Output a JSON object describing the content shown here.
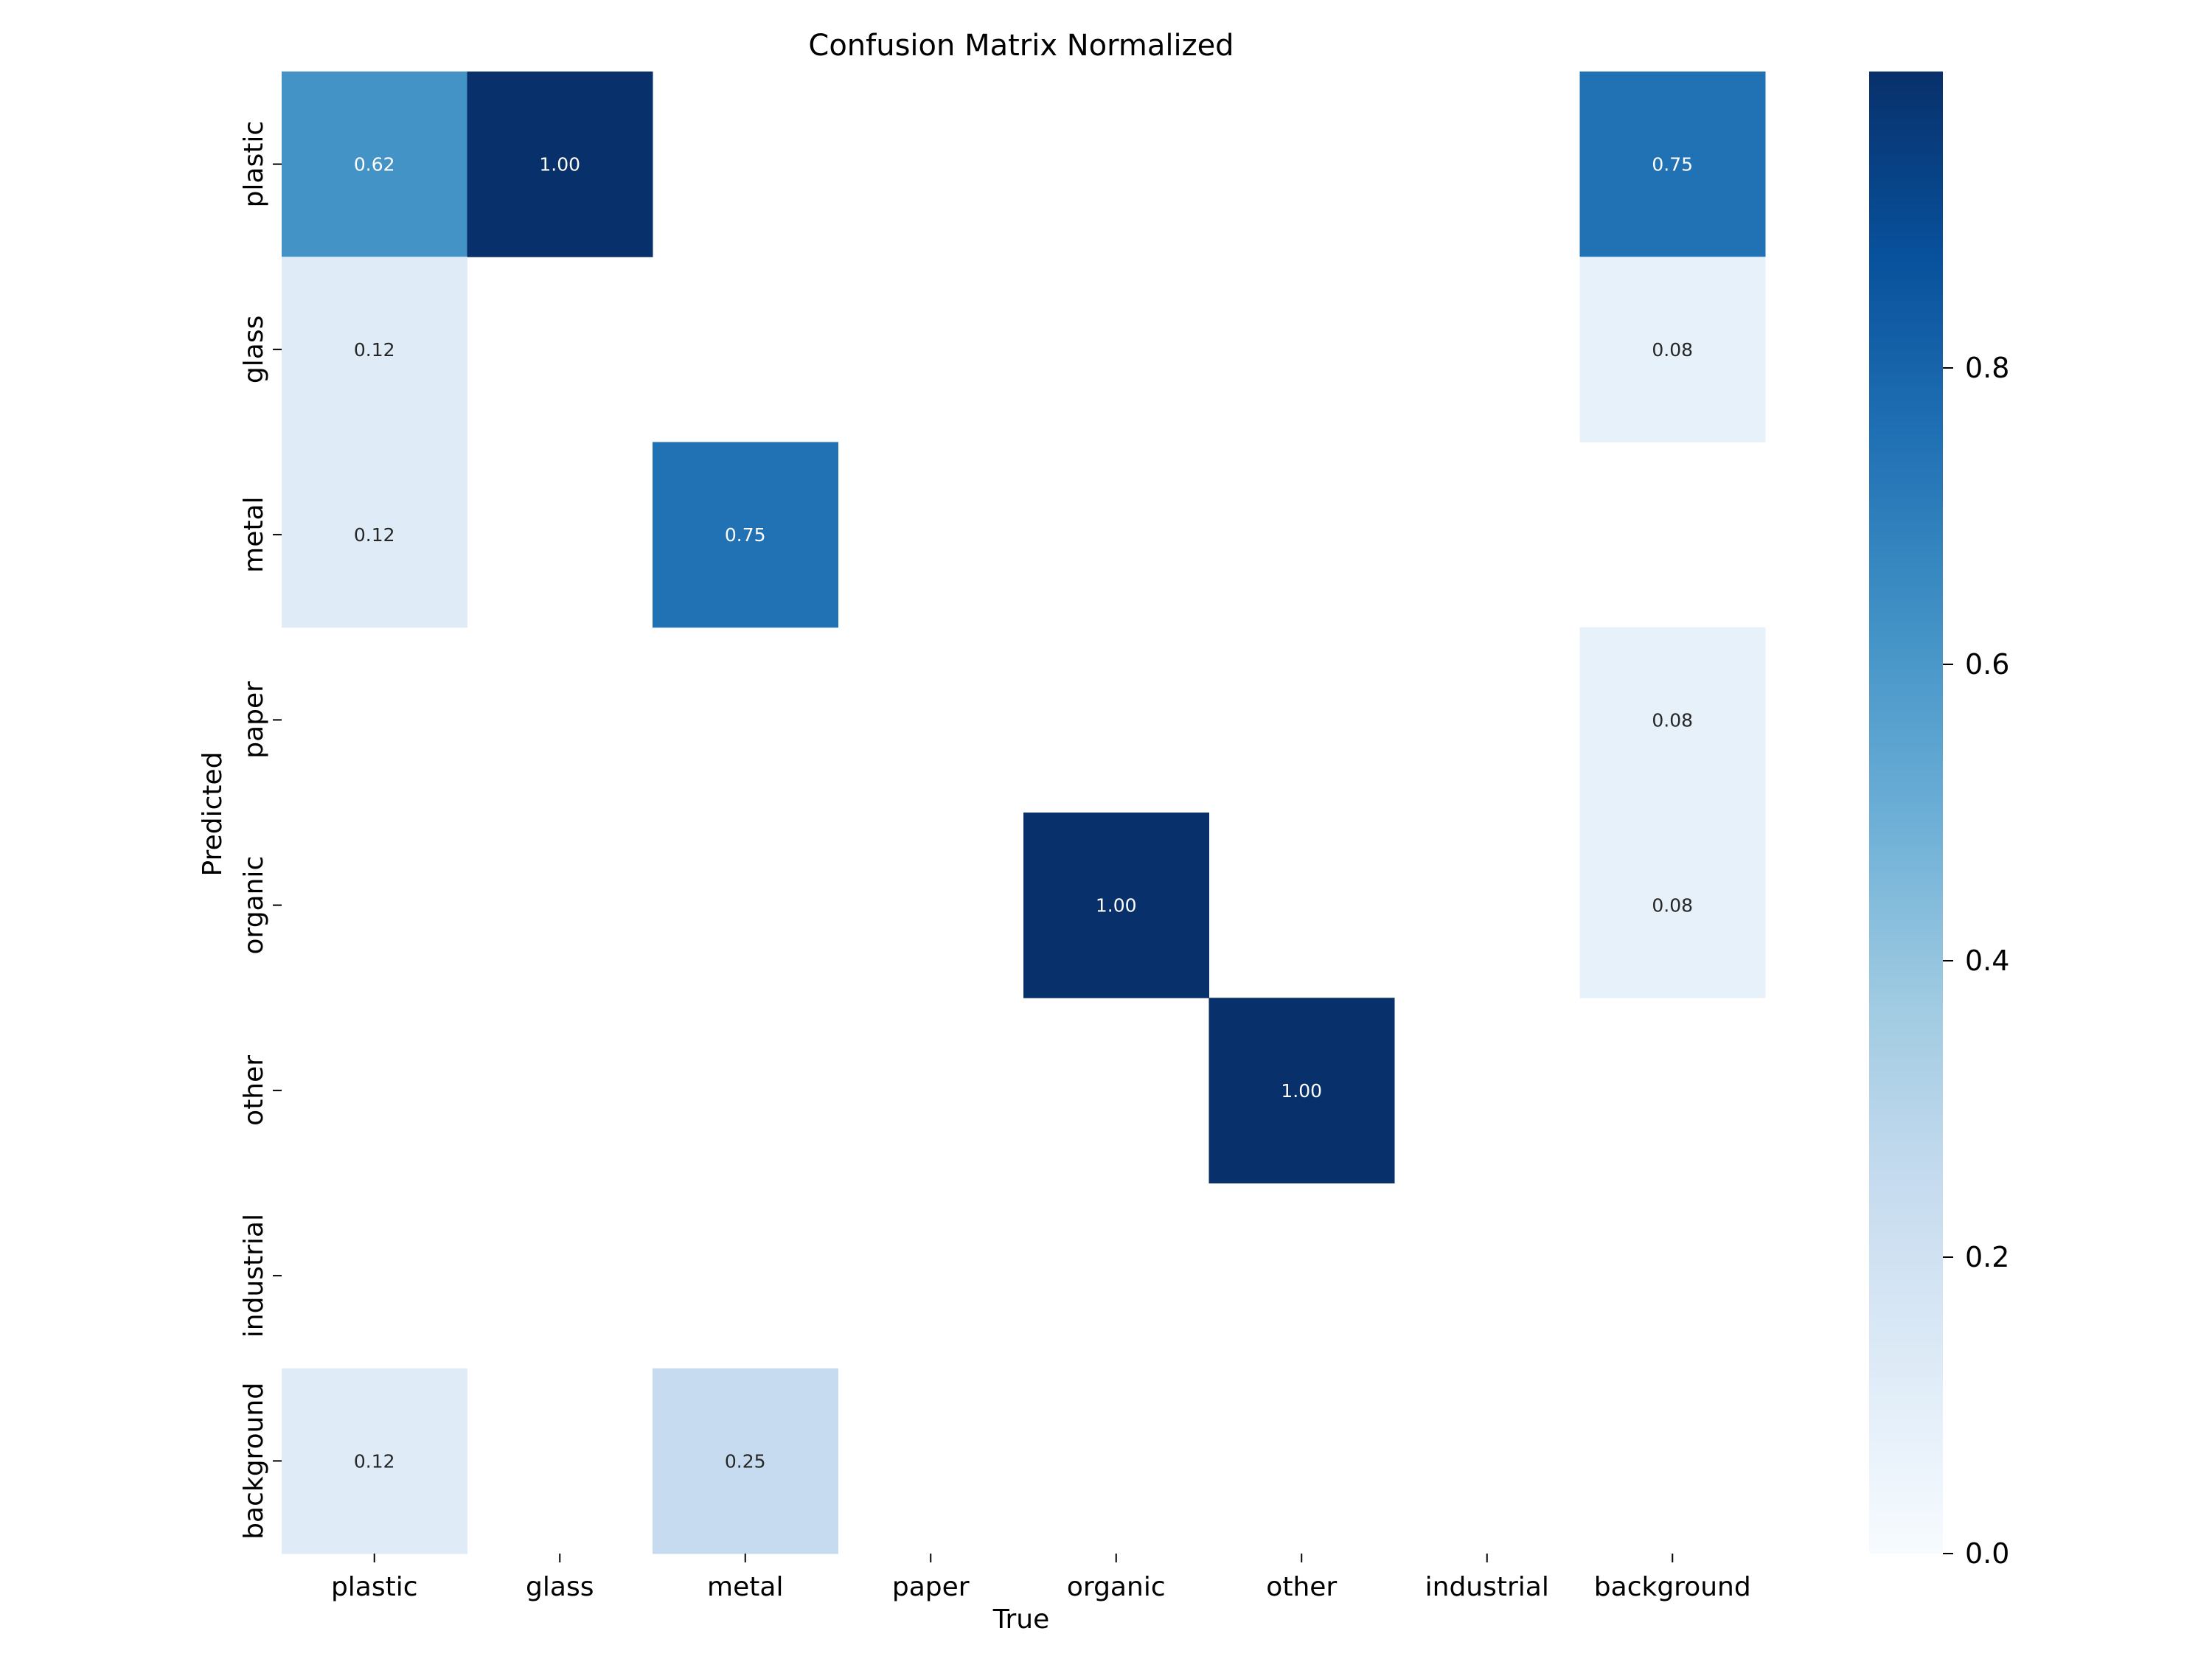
{
  "chart_data": {
    "type": "heatmap",
    "title": "Confusion Matrix Normalized",
    "xlabel": "True",
    "ylabel": "Predicted",
    "x_categories": [
      "plastic",
      "glass",
      "metal",
      "paper",
      "organic",
      "other",
      "industrial",
      "background"
    ],
    "y_categories": [
      "plastic",
      "glass",
      "metal",
      "paper",
      "organic",
      "other",
      "industrial",
      "background"
    ],
    "values": [
      [
        0.62,
        1.0,
        null,
        null,
        null,
        null,
        null,
        0.75
      ],
      [
        0.12,
        null,
        null,
        null,
        null,
        null,
        null,
        0.08
      ],
      [
        0.12,
        null,
        0.75,
        null,
        null,
        null,
        null,
        null
      ],
      [
        null,
        null,
        null,
        null,
        null,
        null,
        null,
        0.08
      ],
      [
        null,
        null,
        null,
        null,
        1.0,
        null,
        null,
        0.08
      ],
      [
        null,
        null,
        null,
        null,
        null,
        1.0,
        null,
        null
      ],
      [
        null,
        null,
        null,
        null,
        null,
        null,
        null,
        null
      ],
      [
        0.12,
        null,
        0.25,
        null,
        null,
        null,
        null,
        null
      ]
    ],
    "colormap": "Blues",
    "colorbar": {
      "range": [
        0,
        1
      ],
      "ticks": [
        0.0,
        0.2,
        0.4,
        0.6,
        0.8
      ],
      "tick_labels": [
        "0.0",
        "0.2",
        "0.4",
        "0.6",
        "0.8"
      ]
    },
    "cell_format": "0.00",
    "grid": false
  }
}
